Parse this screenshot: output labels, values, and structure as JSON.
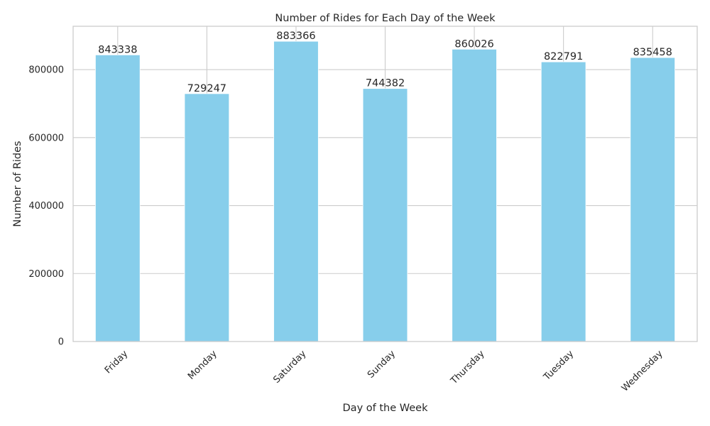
{
  "chart_data": {
    "type": "bar",
    "title": "Number of Rides for Each Day of the Week",
    "xlabel": "Day of the Week",
    "ylabel": "Number of Rides",
    "categories": [
      "Friday",
      "Monday",
      "Saturday",
      "Sunday",
      "Thursday",
      "Tuesday",
      "Wednesday"
    ],
    "values": [
      843338,
      729247,
      883366,
      744382,
      860026,
      822791,
      835458
    ],
    "ylim": [
      0,
      927534
    ],
    "yticks": [
      0,
      200000,
      400000,
      600000,
      800000
    ],
    "bar_color": "#87ceeb",
    "grid": true,
    "xtick_rotation": 45
  }
}
